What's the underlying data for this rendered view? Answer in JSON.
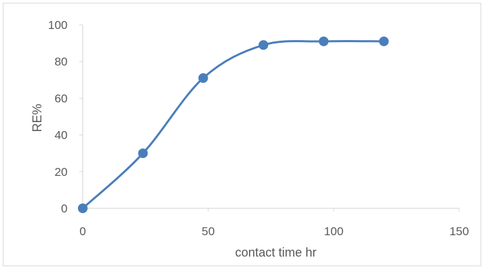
{
  "chart_data": {
    "type": "line",
    "title": "",
    "xlabel": "contact time hr",
    "ylabel": "RE%",
    "xlim": [
      0,
      150
    ],
    "ylim": [
      0,
      100
    ],
    "xticks": [
      0,
      50,
      100,
      150
    ],
    "yticks": [
      0,
      20,
      40,
      60,
      80,
      100
    ],
    "grid": false,
    "legend": "none",
    "smooth": true,
    "series": [
      {
        "color": "#4a7ebb",
        "x": [
          0,
          24,
          48,
          72,
          96,
          120
        ],
        "y": [
          0,
          30,
          71,
          89,
          91,
          91
        ]
      }
    ]
  }
}
